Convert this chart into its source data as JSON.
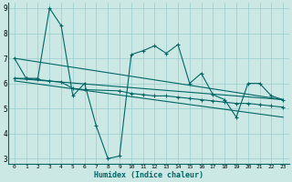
{
  "xlabel": "Humidex (Indice chaleur)",
  "bg_color": "#cce8e4",
  "grid_color": "#99cccc",
  "line_color": "#006666",
  "xlim": [
    -0.5,
    23.5
  ],
  "ylim": [
    2.8,
    9.2
  ],
  "yticks": [
    3,
    4,
    5,
    6,
    7,
    8,
    9
  ],
  "xticks": [
    0,
    1,
    2,
    3,
    4,
    5,
    6,
    7,
    8,
    9,
    10,
    11,
    12,
    13,
    14,
    15,
    16,
    17,
    18,
    19,
    20,
    21,
    22,
    23
  ],
  "series_main_x": [
    0,
    1,
    2,
    3,
    4,
    5,
    6,
    7,
    8,
    9,
    10,
    11,
    12,
    13,
    14,
    15,
    16,
    17,
    18,
    19,
    20,
    21,
    22,
    23
  ],
  "series_main_y": [
    7.0,
    6.2,
    6.2,
    9.0,
    8.3,
    5.5,
    6.0,
    4.3,
    3.0,
    3.1,
    7.15,
    7.3,
    7.5,
    7.2,
    7.55,
    6.0,
    6.4,
    5.55,
    5.35,
    4.65,
    6.0,
    6.0,
    5.5,
    5.35
  ],
  "series2_x": [
    0,
    1,
    2,
    3,
    4,
    5,
    6,
    9,
    10,
    11,
    12,
    13,
    14,
    15,
    16,
    17,
    18,
    19,
    20,
    21,
    22,
    23
  ],
  "series2_y": [
    6.2,
    6.2,
    6.15,
    6.1,
    6.05,
    5.8,
    5.75,
    5.7,
    5.6,
    5.55,
    5.5,
    5.5,
    5.45,
    5.4,
    5.35,
    5.3,
    5.25,
    5.2,
    5.2,
    5.15,
    5.1,
    5.05
  ],
  "trend1_x": [
    0,
    23
  ],
  "trend1_y": [
    7.0,
    5.35
  ],
  "trend2_x": [
    0,
    23
  ],
  "trend2_y": [
    6.2,
    5.35
  ],
  "trend3_x": [
    0,
    23
  ],
  "trend3_y": [
    6.1,
    4.65
  ]
}
